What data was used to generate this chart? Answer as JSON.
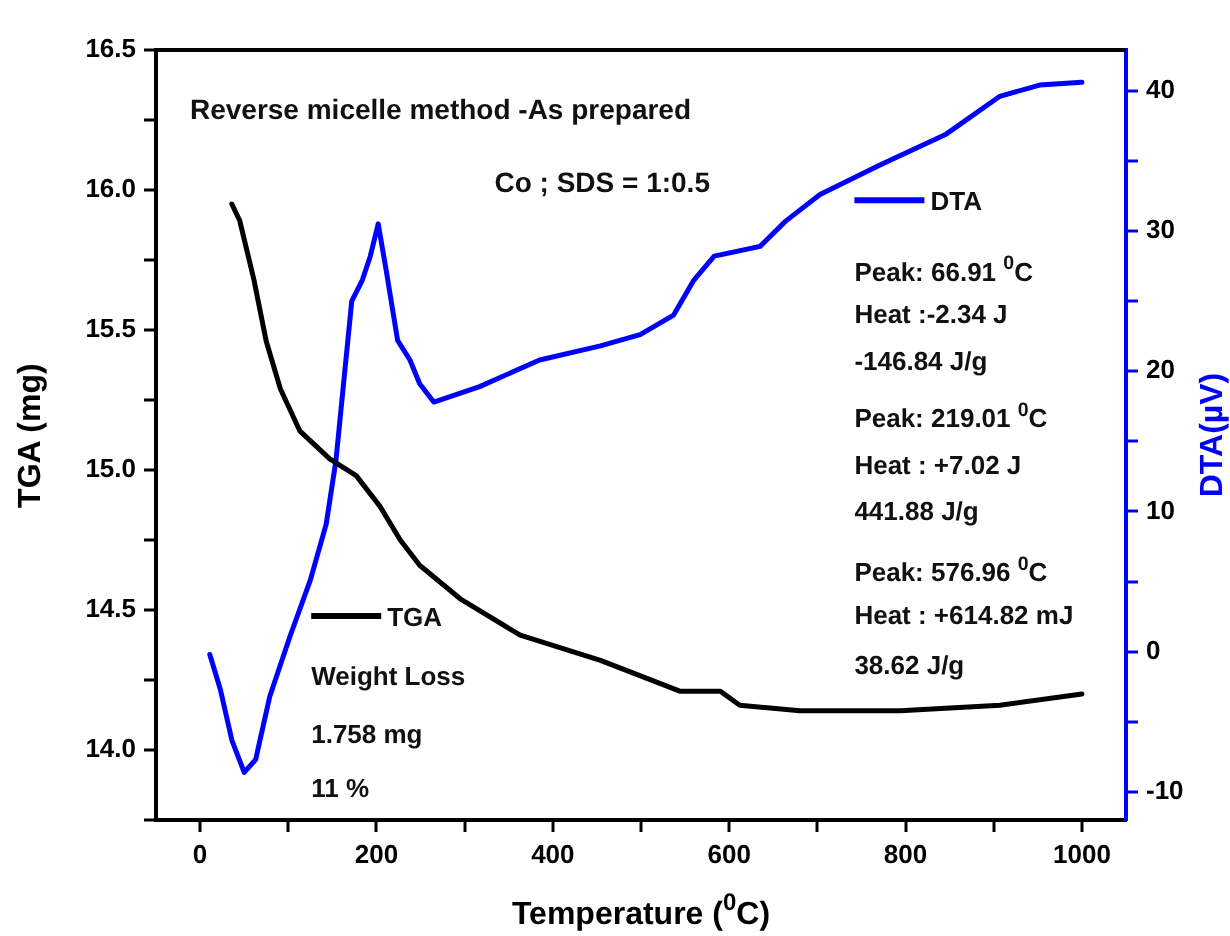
{
  "chart_data": {
    "type": "line",
    "xlabel": "Temperature ($^{0}$C)",
    "ylabel": "TGA (mg)",
    "y2label": "DTA(µV)",
    "xlim": [
      -50,
      1050
    ],
    "xticks": [
      0,
      {
        "value": 100,
        "label": null
      },
      200,
      {
        "value": 300,
        "label": null
      },
      400,
      {
        "value": 500,
        "label": null
      },
      600,
      {
        "value": 700,
        "label": null
      },
      800,
      {
        "value": 900,
        "label": null
      },
      1000
    ],
    "ylim": [
      13.75,
      16.5
    ],
    "yticks": [
      {
        "value": 13.75,
        "label": null
      },
      {
        "value": 14,
        "label": "14.0"
      },
      {
        "value": 14.25,
        "label": null
      },
      14.5,
      {
        "value": 14.75,
        "label": null
      },
      {
        "value": 15,
        "label": "15.0"
      },
      {
        "value": 15.25,
        "label": null
      },
      15.5,
      {
        "value": 15.75,
        "label": null
      },
      {
        "value": 16,
        "label": "16.0"
      },
      {
        "value": 16.25,
        "label": null
      },
      16.5
    ],
    "y2lim": [
      -12,
      42.9
    ],
    "y2ticks": [
      -10,
      {
        "value": -5,
        "label": null
      },
      0,
      {
        "value": 5,
        "label": null
      },
      10,
      {
        "value": 15,
        "label": null
      },
      20,
      {
        "value": 25,
        "label": null
      },
      30,
      {
        "value": 35,
        "label": null
      },
      40
    ],
    "grid": false,
    "legend": "center",
    "marker": "none",
    "line_style": "solid",
    "series": [
      {
        "name": "TGA",
        "color": "#000000",
        "x": [
          36,
          45,
          61,
          75,
          91,
          113,
          147,
          177,
          204,
          227,
          249,
          295,
          363,
          454,
          544,
          590,
          612,
          680,
          794,
          907,
          1000
        ],
        "values": [
          15.95,
          15.89,
          15.68,
          15.46,
          15.29,
          15.14,
          15.04,
          14.98,
          14.87,
          14.75,
          14.66,
          14.54,
          14.41,
          14.32,
          14.21,
          14.21,
          14.16,
          14.14,
          14.14,
          14.16,
          14.2
        ]
      },
      {
        "name": "DTA",
        "color": "#0000ff",
        "axis": "y2",
        "x": [
          11,
          23,
          36,
          50,
          63,
          79,
          102,
          125,
          143,
          154,
          163,
          172,
          184,
          193,
          202,
          211,
          224,
          238,
          249,
          265,
          317,
          385,
          454,
          499,
          537,
          560,
          583,
          635,
          664,
          703,
          771,
          846,
          907,
          952,
          1000
        ],
        "values": [
          -0.2,
          -2.7,
          -6.3,
          -8.6,
          -7.7,
          -3.2,
          1.1,
          5.1,
          9.1,
          13.6,
          19.3,
          25.0,
          26.5,
          28.2,
          30.5,
          27.2,
          22.2,
          20.8,
          19.1,
          17.8,
          18.9,
          20.8,
          21.8,
          22.6,
          24.0,
          26.5,
          28.2,
          28.9,
          30.7,
          32.6,
          34.7,
          36.9,
          39.6,
          40.4,
          40.6
        ]
      }
    ],
    "annotations": [
      "Reverse micelle method -As prepared",
      "Co ; SDS = 1:0.5",
      "Weight Loss",
      "1.758 mg",
      "11 %",
      "Peak: 66.91 $^{0}$C",
      "Heat :-2.34 J",
      "-146.84 J/g",
      "Peak: 219.01 $^{0}$C",
      "Heat : +7.02 J",
      "441.88 J/g",
      "Peak: 576.96 $^{0}$C",
      "Heat : +614.82 mJ",
      "38.62 J/g"
    ]
  }
}
